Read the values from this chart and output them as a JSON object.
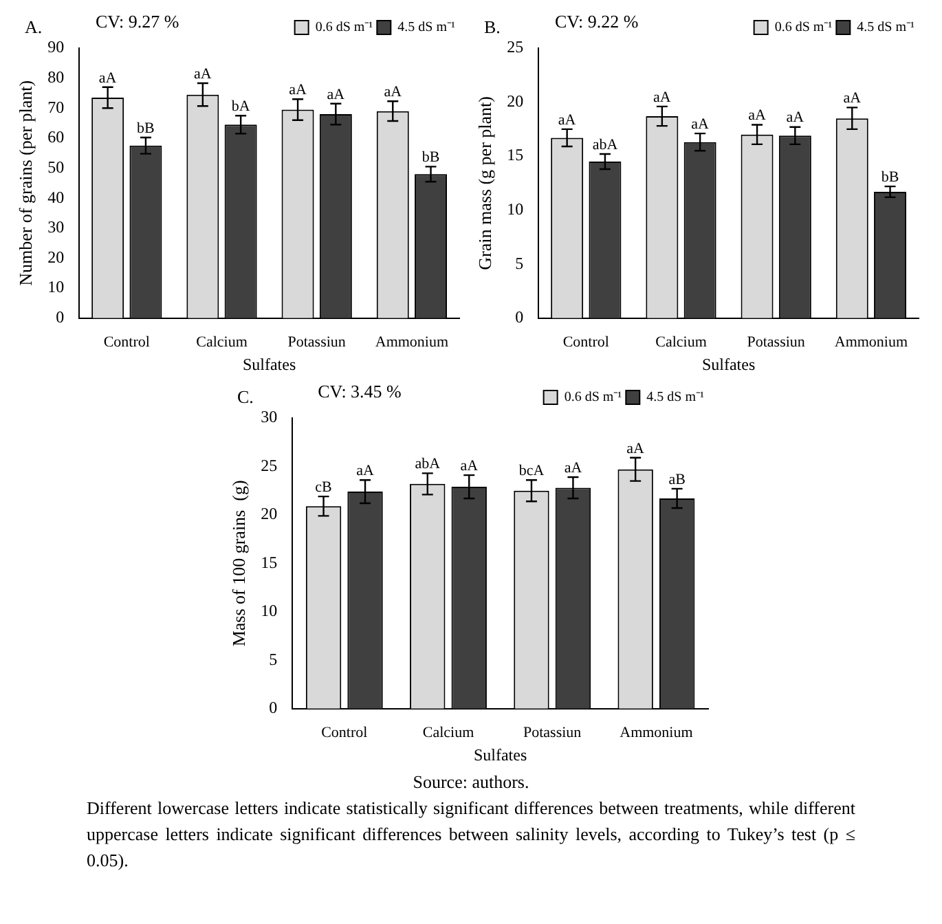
{
  "chart_data": [
    {
      "type": "bar",
      "title": "A.",
      "subtitle": "CV: 9.27 %",
      "xlabel": "Sulfates",
      "ylabel": "Number of grains (per plant)",
      "categories": [
        "Control",
        "Calcium",
        "Potassiun",
        "Ammonium"
      ],
      "ylim": [
        0,
        90
      ],
      "yticks": [
        0,
        10,
        20,
        30,
        40,
        50,
        60,
        70,
        80,
        90
      ],
      "grid": false,
      "legend": "top right",
      "series": [
        {
          "name": "0.6 dS m⁻¹",
          "color": "#d9d9d9",
          "values": [
            73.5,
            74.5,
            69.5,
            69
          ],
          "errors": [
            3.5,
            3.8,
            3.5,
            3.3
          ],
          "value_labels": [
            "aA",
            "aA",
            "aA",
            "aA"
          ]
        },
        {
          "name": "4.5 dS m⁻¹",
          "color": "#404040",
          "values": [
            57.5,
            64.5,
            68,
            48
          ],
          "errors": [
            2.7,
            3,
            3.5,
            2.5
          ],
          "value_labels": [
            "bB",
            "bA",
            "aA",
            "bB"
          ]
        }
      ]
    },
    {
      "type": "bar",
      "title": "B.",
      "subtitle": "CV: 9.22 %",
      "xlabel": "Sulfates",
      "ylabel": "Grain mass (g per plant)",
      "categories": [
        "Control",
        "Calcium",
        "Potassiun",
        "Ammonium"
      ],
      "ylim": [
        0,
        25
      ],
      "yticks": [
        0,
        5,
        10,
        15,
        20,
        25
      ],
      "grid": false,
      "legend": "top right",
      "series": [
        {
          "name": "0.6 dS m⁻¹",
          "color": "#d9d9d9",
          "values": [
            16.7,
            18.7,
            17.0,
            18.5
          ],
          "errors": [
            0.8,
            0.9,
            0.9,
            1.0
          ],
          "value_labels": [
            "aA",
            "aA",
            "aA",
            "aA"
          ]
        },
        {
          "name": "4.5 dS m⁻¹",
          "color": "#404040",
          "values": [
            14.5,
            16.3,
            16.9,
            11.7
          ],
          "errors": [
            0.7,
            0.8,
            0.8,
            0.5
          ],
          "value_labels": [
            "abA",
            "aA",
            "aA",
            "bB"
          ]
        }
      ]
    },
    {
      "type": "bar",
      "title": "C.",
      "subtitle": "CV: 3.45 %",
      "xlabel": "Sulfates",
      "ylabel": "Mass of 100 grains  (g)",
      "categories": [
        "Control",
        "Calcium",
        "Potassiun",
        "Ammonium"
      ],
      "ylim": [
        0,
        30
      ],
      "yticks": [
        0,
        5,
        10,
        15,
        20,
        25,
        30
      ],
      "grid": false,
      "legend": "top right",
      "series": [
        {
          "name": "0.6 dS m⁻¹",
          "color": "#d9d9d9",
          "values": [
            20.9,
            23.2,
            22.5,
            24.7
          ],
          "errors": [
            1.0,
            1.1,
            1.1,
            1.2
          ],
          "value_labels": [
            "cB",
            "abA",
            "bcA",
            "aA"
          ]
        },
        {
          "name": "4.5 dS m⁻¹",
          "color": "#404040",
          "values": [
            22.4,
            22.9,
            22.8,
            21.7
          ],
          "errors": [
            1.2,
            1.2,
            1.1,
            1.0
          ],
          "value_labels": [
            "aA",
            "aA",
            "aA",
            "aB"
          ]
        }
      ],
      "annotations": [
        "Source: authors.",
        "Different lowercase letters indicate statistically significant differences between treatments, while different uppercase letters indicate significant differences between salinity levels, according to Tukey’s test (p ≤ 0.05)."
      ]
    }
  ]
}
